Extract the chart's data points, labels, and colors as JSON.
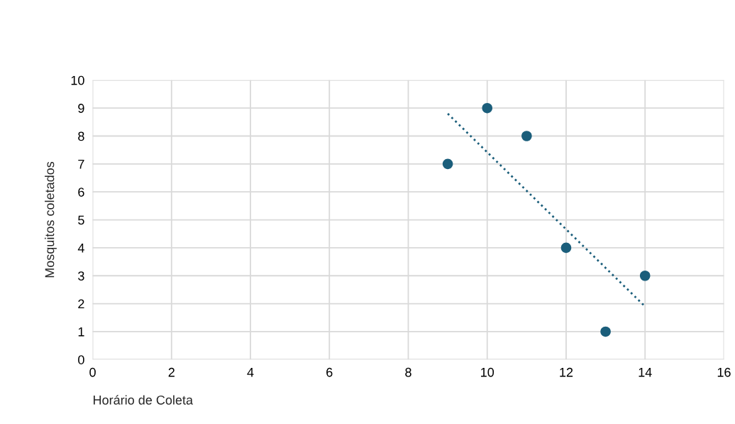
{
  "chart_data": {
    "type": "scatter",
    "xlabel": "Horário de Coleta",
    "ylabel": "Mosquitos coletados",
    "x": [
      9,
      10,
      11,
      12,
      13,
      14
    ],
    "series": [
      {
        "type": "scatter",
        "color": "#1b5e7b",
        "marker": "circle",
        "values": [
          7,
          9,
          8,
          4,
          1,
          3
        ]
      },
      {
        "type": "line",
        "color": "#1b5e7b",
        "line_style": "dotted",
        "marker": "none",
        "x": [
          9,
          14
        ],
        "values": [
          8.8,
          1.9
        ]
      }
    ],
    "xlim": [
      0,
      16
    ],
    "xticks": [
      0,
      2,
      4,
      6,
      8,
      10,
      12,
      14,
      16
    ],
    "ylim": [
      0,
      10
    ],
    "yticks": [
      0,
      1,
      2,
      3,
      4,
      5,
      6,
      7,
      8,
      9,
      10
    ],
    "grid": true,
    "legend": false
  }
}
